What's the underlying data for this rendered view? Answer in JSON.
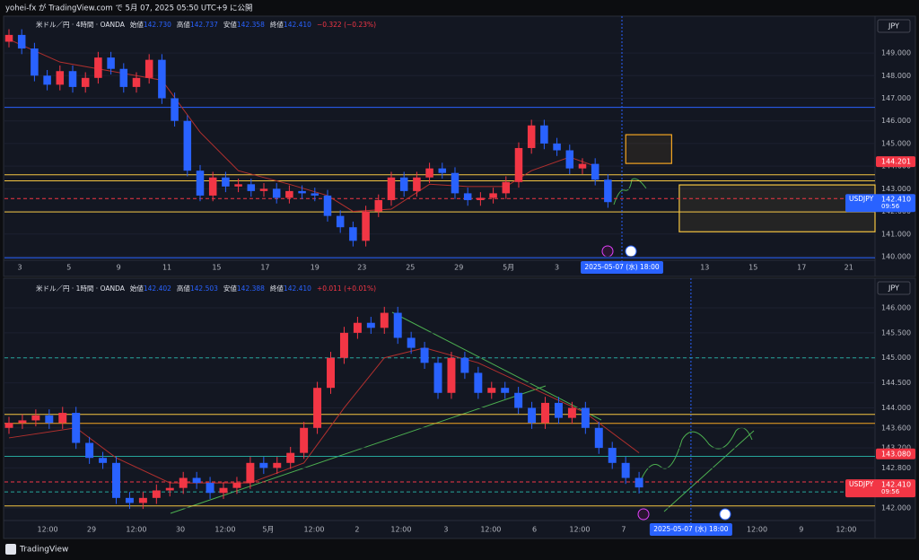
{
  "top_bar": "yohei-fx が TradingView.com で 5月 07, 2025 05:50 UTC+9 に公開",
  "footer": "TradingView",
  "chart_data": [
    {
      "type": "candlestick",
      "currency": "JPY",
      "legend": {
        "symbol": "米ドル／円 · 4時間 · OANDA",
        "fields": [
          {
            "label": "始値",
            "value": "142.730"
          },
          {
            "label": "高値",
            "value": "142.737"
          },
          {
            "label": "安値",
            "value": "142.358"
          },
          {
            "label": "終値",
            "value": "142.410"
          }
        ],
        "change": "−0.322 (−0.23%)",
        "change_color": "#f23645"
      },
      "up_color": "#f23645",
      "down_color": "#2962ff",
      "grid": true,
      "open": [
        149.5,
        149.8,
        149.2,
        148.0,
        147.6,
        148.2,
        147.5,
        147.9,
        148.8,
        148.3,
        147.5,
        147.9,
        148.7,
        147.0,
        146.0,
        143.8,
        142.7,
        143.5,
        143.1,
        143.2,
        142.9,
        143.0,
        142.6,
        142.9,
        142.8,
        142.7,
        141.8,
        141.3,
        140.7,
        142.0,
        142.5,
        143.5,
        142.9,
        143.5,
        143.9,
        143.7,
        142.8,
        142.5,
        142.6,
        142.8,
        143.3,
        144.8,
        145.8,
        145.0,
        144.7,
        143.9,
        144.1,
        143.4
      ],
      "high": [
        150.05,
        150.05,
        149.45,
        148.25,
        148.45,
        148.45,
        148.15,
        149.05,
        149.05,
        148.55,
        148.15,
        148.95,
        148.95,
        147.25,
        146.25,
        144.05,
        143.75,
        143.75,
        143.45,
        143.45,
        143.25,
        143.25,
        143.15,
        143.15,
        143.05,
        142.95,
        142.05,
        141.55,
        142.25,
        142.75,
        143.75,
        143.75,
        143.75,
        144.15,
        144.15,
        143.95,
        143.05,
        142.85,
        143.05,
        143.55,
        145.05,
        146.05,
        146.05,
        145.25,
        144.95,
        144.35,
        144.35,
        143.65
      ],
      "low": [
        149.25,
        148.95,
        147.75,
        147.35,
        147.35,
        147.25,
        147.25,
        147.65,
        148.05,
        147.25,
        147.25,
        147.65,
        146.75,
        145.75,
        143.55,
        142.45,
        142.45,
        142.85,
        142.85,
        142.65,
        142.65,
        142.35,
        142.35,
        142.55,
        142.45,
        141.55,
        141.05,
        140.45,
        140.45,
        141.75,
        142.25,
        142.65,
        142.65,
        143.25,
        143.45,
        142.55,
        142.25,
        142.25,
        142.35,
        142.55,
        143.05,
        144.55,
        144.75,
        144.45,
        143.65,
        143.65,
        143.15,
        142.16
      ],
      "close": [
        149.8,
        149.2,
        148.0,
        147.6,
        148.2,
        147.5,
        147.9,
        148.8,
        148.3,
        147.5,
        147.9,
        148.7,
        147.0,
        146.0,
        143.8,
        142.7,
        143.5,
        143.1,
        143.2,
        142.9,
        143.0,
        142.6,
        142.9,
        142.8,
        142.7,
        141.8,
        141.3,
        140.7,
        142.0,
        142.5,
        143.5,
        142.9,
        143.5,
        143.9,
        143.7,
        142.8,
        142.5,
        142.6,
        142.8,
        143.3,
        144.8,
        145.8,
        145.0,
        144.7,
        143.9,
        144.1,
        143.4,
        142.41
      ],
      "ma": {
        "color": "#b2302e",
        "x": [
          0,
          4,
          8,
          12,
          15,
          18,
          22,
          25,
          27,
          30,
          33,
          36,
          39,
          41,
          44,
          46
        ],
        "values": [
          149.6,
          148.6,
          148.2,
          147.8,
          145.5,
          143.8,
          143.2,
          142.7,
          142.0,
          142.1,
          143.2,
          143.1,
          143.1,
          143.8,
          144.4,
          144.0
        ]
      },
      "xlim": [
        -0.352,
        67.96
      ],
      "ylim": [
        139.92,
        150.55
      ],
      "yticks": [
        {
          "value": 140,
          "label": "140.000"
        },
        {
          "value": 141,
          "label": "141.000"
        },
        {
          "value": 142,
          "label": "142.000"
        },
        {
          "value": 143,
          "label": "143.000"
        },
        {
          "value": 144,
          "label": "144.000"
        },
        {
          "value": 145,
          "label": "145.000"
        },
        {
          "value": 146,
          "label": "146.000"
        },
        {
          "value": 147,
          "label": "147.000"
        },
        {
          "value": 148,
          "label": "148.000"
        },
        {
          "value": 149,
          "label": "149.000"
        }
      ],
      "xticks": [
        {
          "value": 0.85,
          "label": "3"
        },
        {
          "value": 4.7,
          "label": "5"
        },
        {
          "value": 8.6,
          "label": "9"
        },
        {
          "value": 12.4,
          "label": "11"
        },
        {
          "value": 16.3,
          "label": "15"
        },
        {
          "value": 20.1,
          "label": "17"
        },
        {
          "value": 24,
          "label": "19"
        },
        {
          "value": 27.7,
          "label": "23"
        },
        {
          "value": 31.5,
          "label": "25"
        },
        {
          "value": 35.3,
          "label": "29"
        },
        {
          "value": 39.2,
          "label": "5月"
        },
        {
          "value": 43,
          "label": "3"
        },
        {
          "value": 54.6,
          "label": "13"
        },
        {
          "value": 58.4,
          "label": "15"
        },
        {
          "value": 62.2,
          "label": "17"
        },
        {
          "value": 65.9,
          "label": "21"
        }
      ],
      "levels": [
        {
          "value": 146.6,
          "color": "#2962ff",
          "dash": false
        },
        {
          "value": 143.62,
          "color": "#f5c542",
          "dash": false
        },
        {
          "value": 143.35,
          "color": "#f5c542",
          "dash": false
        },
        {
          "value": 142.57,
          "color": "#f23645",
          "dash": true
        },
        {
          "value": 141.98,
          "color": "#f5c542",
          "dash": false
        },
        {
          "value": 139.95,
          "color": "#2962ff",
          "dash": false
        }
      ],
      "boxes": [
        {
          "x": [
            48.4,
            52
          ],
          "y": [
            144.12,
            145.39
          ],
          "color": "#f5a623"
        },
        {
          "x": [
            52.6,
            67.96
          ],
          "y": [
            141.1,
            143.17
          ],
          "color": "#f5c542"
        }
      ],
      "price_labels": [
        {
          "value": 144.201,
          "label": "144.201",
          "color": "#f23645"
        },
        {
          "value": 142.41,
          "symbol": "USDJPY",
          "label": "142.410",
          "time": "09:56",
          "color": "#2962ff"
        }
      ],
      "crosshair": {
        "x": 48.1,
        "label": "2025-05-07 (水)   18:00"
      }
    },
    {
      "type": "candlestick",
      "currency": "JPY",
      "legend": {
        "symbol": "米ドル／円 · 1時間 · OANDA",
        "fields": [
          {
            "label": "始値",
            "value": "142.402"
          },
          {
            "label": "高値",
            "value": "142.503"
          },
          {
            "label": "安値",
            "value": "142.388"
          },
          {
            "label": "終値",
            "value": "142.410"
          }
        ],
        "change": "+0.011 (+0.01%)",
        "change_color": "#f23645"
      },
      "up_color": "#f23645",
      "down_color": "#2962ff",
      "grid": true,
      "open": [
        143.6,
        143.7,
        143.75,
        143.85,
        143.7,
        143.9,
        143.3,
        143.0,
        142.9,
        142.2,
        142.1,
        142.2,
        142.35,
        142.4,
        142.6,
        142.5,
        142.3,
        142.4,
        142.5,
        142.9,
        142.8,
        142.9,
        143.1,
        143.6,
        144.4,
        145.0,
        145.5,
        145.7,
        145.6,
        145.9,
        145.4,
        145.2,
        144.9,
        144.3,
        145.0,
        144.7,
        144.3,
        144.4,
        144.3,
        144.0,
        143.7,
        144.1,
        143.8,
        144.0,
        143.6,
        143.2,
        142.9,
        142.6
      ],
      "high": [
        143.82,
        143.87,
        143.97,
        143.97,
        144.02,
        144.02,
        143.42,
        143.12,
        143.02,
        142.32,
        142.32,
        142.47,
        142.52,
        142.72,
        142.72,
        142.62,
        142.52,
        142.62,
        143.02,
        143.02,
        143.02,
        143.22,
        143.72,
        144.52,
        145.12,
        145.62,
        145.82,
        145.82,
        146.02,
        146.02,
        145.52,
        145.32,
        145.02,
        145.12,
        145.12,
        144.82,
        144.52,
        144.52,
        144.42,
        144.12,
        144.22,
        144.22,
        144.12,
        144.12,
        143.72,
        143.32,
        143.02,
        142.72
      ],
      "low": [
        143.48,
        143.58,
        143.63,
        143.58,
        143.58,
        143.18,
        142.88,
        142.78,
        142.08,
        141.98,
        141.98,
        142.08,
        142.23,
        142.28,
        142.38,
        142.18,
        142.18,
        142.28,
        142.38,
        142.68,
        142.68,
        142.78,
        142.98,
        143.48,
        144.28,
        144.88,
        145.38,
        145.48,
        145.48,
        145.28,
        145.08,
        144.78,
        144.18,
        144.18,
        144.58,
        144.18,
        144.18,
        144.18,
        143.88,
        143.58,
        143.58,
        143.68,
        143.68,
        143.48,
        143.08,
        142.78,
        142.48,
        142.29
      ],
      "close": [
        143.7,
        143.75,
        143.85,
        143.7,
        143.9,
        143.3,
        143.0,
        142.9,
        142.2,
        142.1,
        142.2,
        142.35,
        142.4,
        142.6,
        142.5,
        142.3,
        142.4,
        142.5,
        142.9,
        142.8,
        142.9,
        143.1,
        143.6,
        144.4,
        145.0,
        145.5,
        145.7,
        145.6,
        145.9,
        145.4,
        145.2,
        144.9,
        144.3,
        145.0,
        144.7,
        144.3,
        144.4,
        144.3,
        144.0,
        143.7,
        144.1,
        143.8,
        144.0,
        143.6,
        143.2,
        142.9,
        142.6,
        142.41
      ],
      "ma": {
        "color": "#b2302e",
        "x": [
          0,
          5,
          8,
          12,
          18,
          22,
          25,
          28,
          31,
          35,
          39,
          43,
          47
        ],
        "values": [
          143.4,
          143.6,
          143.0,
          142.5,
          142.5,
          142.9,
          144.0,
          145.0,
          145.2,
          144.9,
          144.4,
          143.9,
          143.1
        ]
      },
      "xlim": [
        -0.335,
        64.6
      ],
      "ylim": [
        141.892,
        146.556
      ],
      "yticks": [
        {
          "value": 142,
          "label": "142.000"
        },
        {
          "value": 142.8,
          "label": "142.800"
        },
        {
          "value": 143.2,
          "label": "143.200"
        },
        {
          "value": 143.6,
          "label": "143.600"
        },
        {
          "value": 144,
          "label": "144.000"
        },
        {
          "value": 144.5,
          "label": "144.500"
        },
        {
          "value": 145,
          "label": "145.000"
        },
        {
          "value": 145.5,
          "label": "145.500"
        },
        {
          "value": 146,
          "label": "146.000"
        }
      ],
      "xticks": [
        {
          "value": 2.88,
          "label": "12:00"
        },
        {
          "value": 6.16,
          "label": "29"
        },
        {
          "value": 9.5,
          "label": "12:00"
        },
        {
          "value": 12.79,
          "label": "30"
        },
        {
          "value": 16.13,
          "label": "12:00"
        },
        {
          "value": 19.34,
          "label": "5月"
        },
        {
          "value": 22.76,
          "label": "12:00"
        },
        {
          "value": 25.97,
          "label": "2"
        },
        {
          "value": 29.25,
          "label": "12:00"
        },
        {
          "value": 32.6,
          "label": "3"
        },
        {
          "value": 35.94,
          "label": "12:00"
        },
        {
          "value": 39.2,
          "label": "6"
        },
        {
          "value": 42.57,
          "label": "12:00"
        },
        {
          "value": 45.85,
          "label": "7"
        },
        {
          "value": 55.8,
          "label": "12:00"
        },
        {
          "value": 59.1,
          "label": "9"
        },
        {
          "value": 62.45,
          "label": "12:00"
        }
      ],
      "levels": [
        {
          "value": 145.0,
          "color": "#26a69a",
          "dash": true
        },
        {
          "value": 143.87,
          "color": "#f5c542",
          "dash": false
        },
        {
          "value": 143.69,
          "color": "#f5a623",
          "dash": false
        },
        {
          "value": 143.03,
          "color": "#26a69a",
          "dash": false
        },
        {
          "value": 142.52,
          "color": "#f23645",
          "dash": true
        },
        {
          "value": 142.32,
          "color": "#26a69a",
          "dash": true
        },
        {
          "value": 142.04,
          "color": "#f5c542",
          "dash": false
        }
      ],
      "boxes": [],
      "price_labels": [
        {
          "value": 143.08,
          "label": "143.080",
          "color": "#f23645"
        },
        {
          "value": 142.41,
          "symbol": "USDJPY",
          "label": "142.410",
          "time": "09:56",
          "color": "#f23645"
        }
      ],
      "crosshair": {
        "x": 50.87,
        "label": "2025-05-07 (水)   18:00"
      }
    }
  ]
}
